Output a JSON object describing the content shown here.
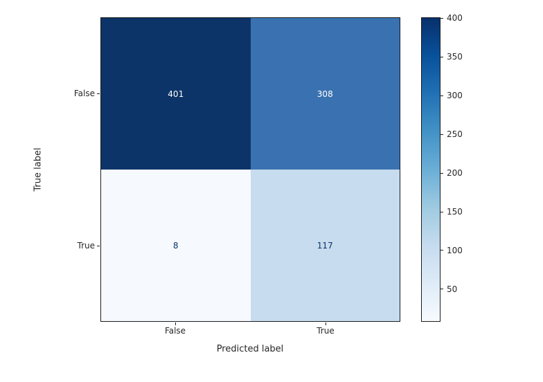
{
  "chart_data": {
    "type": "heatmap",
    "title": "",
    "xlabel": "Predicted label",
    "ylabel": "True label",
    "x_categories": [
      "False",
      "True"
    ],
    "y_categories": [
      "False",
      "True"
    ],
    "values": [
      [
        401,
        308
      ],
      [
        8,
        117
      ]
    ],
    "colormap": "Blues",
    "vmin": 8,
    "vmax": 401,
    "cell_colors": [
      [
        "#0c3468",
        "#3a72b1"
      ],
      [
        "#f6fafe",
        "#c7dcee"
      ]
    ],
    "cell_text_colors": [
      [
        "#ffffff",
        "#ffffff"
      ],
      [
        "#0b3266",
        "#0b3266"
      ]
    ],
    "colorbar": {
      "ticks": [
        400,
        350,
        300,
        250,
        200,
        150,
        100,
        50
      ],
      "gradient_stops": [
        "#f7fbff",
        "#deebf7",
        "#c6dbef",
        "#9ecae1",
        "#6baed6",
        "#4292c6",
        "#2171b5",
        "#08519c",
        "#08306b"
      ]
    }
  }
}
